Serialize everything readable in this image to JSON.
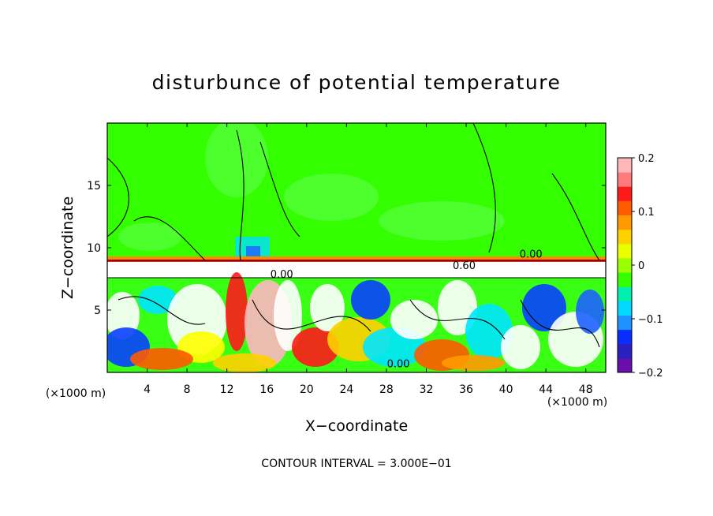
{
  "chart_data": {
    "type": "heatmap",
    "title": "disturbunce of potential temperature",
    "xlabel": "X−coordinate",
    "ylabel": "Z−coordinate",
    "x_unit_label": "(×1000 m)",
    "x_unit_label_right": "(×1000 m)",
    "xlim": [
      0,
      50
    ],
    "ylim": [
      0,
      20
    ],
    "x_ticks": [
      4,
      8,
      12,
      16,
      20,
      24,
      28,
      32,
      36,
      40,
      44,
      48
    ],
    "y_ticks": [
      5,
      10,
      15
    ],
    "contour_interval_text": "CONTOUR INTERVAL = 3.000E−01",
    "contour_labels": [
      {
        "text": "0.00",
        "x": 42.5,
        "y": 9.2
      },
      {
        "text": "0.60",
        "x": 35.8,
        "y": 8.3
      },
      {
        "text": "0.00",
        "x": 29.2,
        "y": 0.4
      },
      {
        "text": "0.00",
        "x": 17.5,
        "y": 7.6
      }
    ],
    "colorbar": {
      "range": [
        -0.2,
        0.2
      ],
      "tick_labels": [
        "0.2",
        "0.1",
        "0",
        "−0.1",
        "−0.2"
      ],
      "tick_values": [
        0.2,
        0.1,
        0,
        -0.1,
        -0.2
      ],
      "colors": [
        "#6a0dad",
        "#2a1fbf",
        "#0a2cff",
        "#1e90ff",
        "#00d8ff",
        "#00f0b0",
        "#33ff00",
        "#9aff00",
        "#e8ff00",
        "#ffd000",
        "#ff9a00",
        "#ff5a00",
        "#ff1a1a",
        "#ff7b7b",
        "#ffb6b6"
      ]
    },
    "field_colors": {
      "background": "#33ff00",
      "pale": "#4dff4d",
      "white": "#ffffff",
      "red": "#ff1a1a",
      "pink": "#ffb6c1",
      "yellow": "#ffff00",
      "blue": "#0a40ff",
      "cyan": "#00ffff"
    },
    "grid": false
  }
}
